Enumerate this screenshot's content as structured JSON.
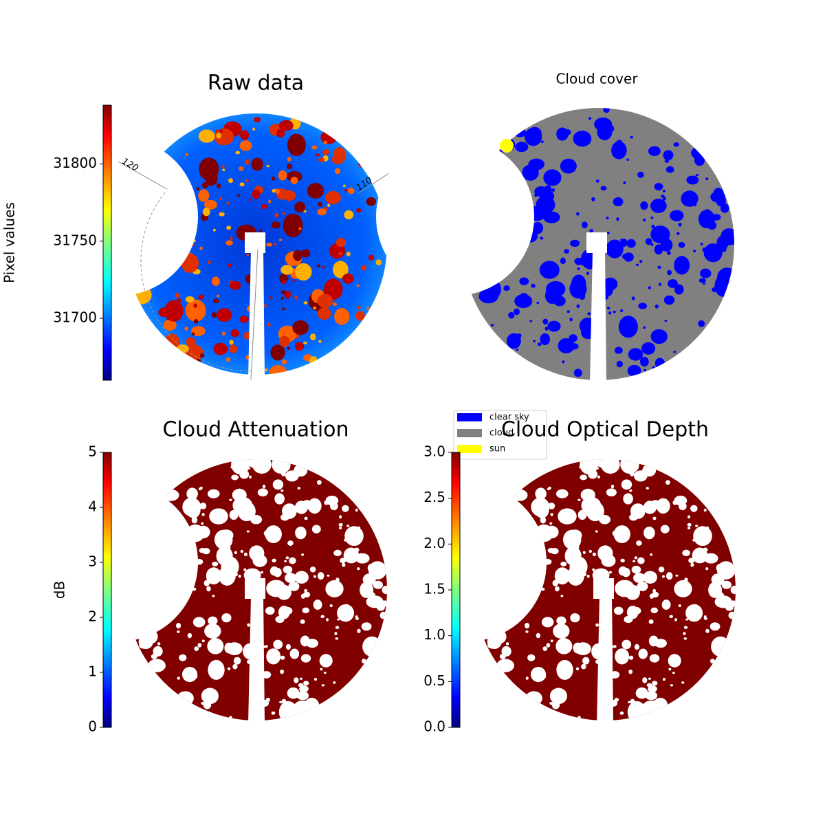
{
  "chart_data": [
    {
      "type": "image",
      "title": "Raw data",
      "colorbar": {
        "label": "Pixel values",
        "lim": [
          31660,
          31838
        ],
        "ticks": [
          31700,
          31750,
          31800
        ]
      },
      "annotations": [
        "120",
        "110"
      ]
    },
    {
      "type": "image",
      "title": "Cloud cover",
      "legend": [
        {
          "name": "clear sky",
          "color": "#0000ff"
        },
        {
          "name": "cloud",
          "color": "#808080"
        },
        {
          "name": "sun",
          "color": "#ffff00"
        }
      ]
    },
    {
      "type": "image",
      "title": "Cloud Attenuation",
      "colorbar": {
        "label": "dB",
        "lim": [
          0,
          5
        ],
        "ticks": [
          0,
          1,
          2,
          3,
          4,
          5
        ]
      }
    },
    {
      "type": "image",
      "title": "Cloud Optical Depth",
      "colorbar": {
        "lim": [
          0,
          3
        ],
        "ticks": [
          {
            "value": 0,
            "label": "0.0"
          },
          {
            "value": 0.5,
            "label": "0.5"
          },
          {
            "value": 1,
            "label": "1.0"
          },
          {
            "value": 1.5,
            "label": "1.5"
          },
          {
            "value": 2,
            "label": "2.0"
          },
          {
            "value": 2.5,
            "label": "2.5"
          },
          {
            "value": 3,
            "label": "3.0"
          }
        ]
      }
    }
  ]
}
